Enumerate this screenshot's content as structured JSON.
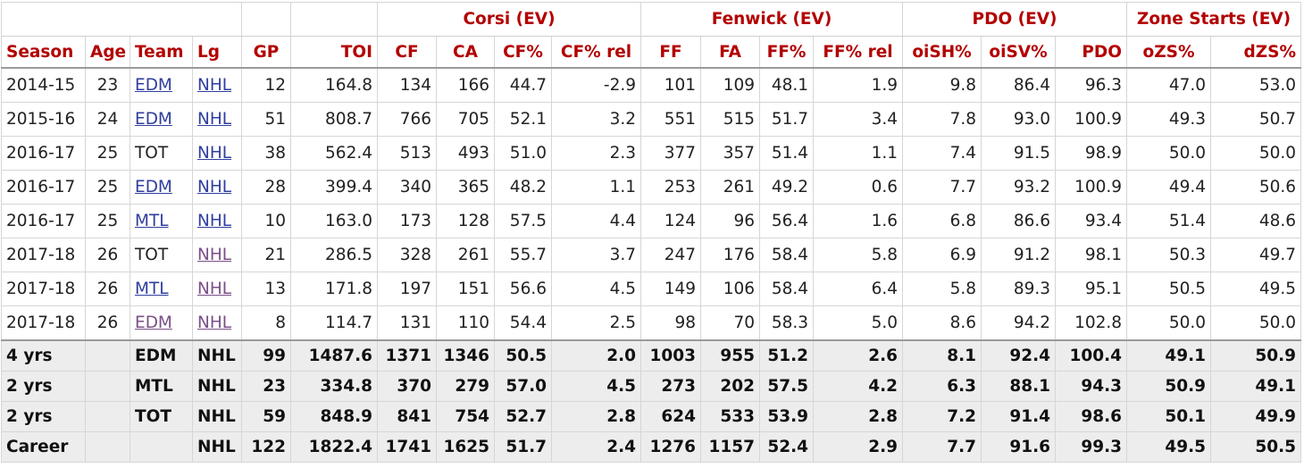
{
  "groups": {
    "corsi": "Corsi (EV)",
    "fenwick": "Fenwick (EV)",
    "pdo": "PDO (EV)",
    "zone": "Zone Starts (EV)"
  },
  "columns": [
    "Season",
    "Age",
    "Team",
    "Lg",
    "GP",
    "TOI",
    "CF",
    "CA",
    "CF%",
    "CF% rel",
    "FF",
    "FA",
    "FF%",
    "FF% rel",
    "oiSH%",
    "oiSV%",
    "PDO",
    "oZS%",
    "dZS%"
  ],
  "rows": [
    {
      "season": "2014-15",
      "age": "23",
      "team": "EDM",
      "lg": "NHL",
      "gp": "12",
      "toi": "164.8",
      "cf": "134",
      "ca": "166",
      "cfp": "44.7",
      "cfrel": "-2.9",
      "ff": "101",
      "fa": "109",
      "ffp": "48.1",
      "ffrel": "1.9",
      "oish": "9.8",
      "oisv": "86.4",
      "pdo": "96.3",
      "ozs": "47.0",
      "dzs": "53.0"
    },
    {
      "season": "2015-16",
      "age": "24",
      "team": "EDM",
      "lg": "NHL",
      "gp": "51",
      "toi": "808.7",
      "cf": "766",
      "ca": "705",
      "cfp": "52.1",
      "cfrel": "3.2",
      "ff": "551",
      "fa": "515",
      "ffp": "51.7",
      "ffrel": "3.4",
      "oish": "7.8",
      "oisv": "93.0",
      "pdo": "100.9",
      "ozs": "49.3",
      "dzs": "50.7"
    },
    {
      "season": "2016-17",
      "age": "25",
      "team": "TOT",
      "lg": "NHL",
      "gp": "38",
      "toi": "562.4",
      "cf": "513",
      "ca": "493",
      "cfp": "51.0",
      "cfrel": "2.3",
      "ff": "377",
      "fa": "357",
      "ffp": "51.4",
      "ffrel": "1.1",
      "oish": "7.4",
      "oisv": "91.5",
      "pdo": "98.9",
      "ozs": "50.0",
      "dzs": "50.0"
    },
    {
      "season": "2016-17",
      "age": "25",
      "team": "EDM",
      "lg": "NHL",
      "gp": "28",
      "toi": "399.4",
      "cf": "340",
      "ca": "365",
      "cfp": "48.2",
      "cfrel": "1.1",
      "ff": "253",
      "fa": "261",
      "ffp": "49.2",
      "ffrel": "0.6",
      "oish": "7.7",
      "oisv": "93.2",
      "pdo": "100.9",
      "ozs": "49.4",
      "dzs": "50.6"
    },
    {
      "season": "2016-17",
      "age": "25",
      "team": "MTL",
      "lg": "NHL",
      "gp": "10",
      "toi": "163.0",
      "cf": "173",
      "ca": "128",
      "cfp": "57.5",
      "cfrel": "4.4",
      "ff": "124",
      "fa": "96",
      "ffp": "56.4",
      "ffrel": "1.6",
      "oish": "6.8",
      "oisv": "86.6",
      "pdo": "93.4",
      "ozs": "51.4",
      "dzs": "48.6"
    },
    {
      "season": "2017-18",
      "age": "26",
      "team": "TOT",
      "lg": "NHL",
      "gp": "21",
      "toi": "286.5",
      "cf": "328",
      "ca": "261",
      "cfp": "55.7",
      "cfrel": "3.7",
      "ff": "247",
      "fa": "176",
      "ffp": "58.4",
      "ffrel": "5.8",
      "oish": "6.9",
      "oisv": "91.2",
      "pdo": "98.1",
      "ozs": "50.3",
      "dzs": "49.7"
    },
    {
      "season": "2017-18",
      "age": "26",
      "team": "MTL",
      "lg": "NHL",
      "gp": "13",
      "toi": "171.8",
      "cf": "197",
      "ca": "151",
      "cfp": "56.6",
      "cfrel": "4.5",
      "ff": "149",
      "fa": "106",
      "ffp": "58.4",
      "ffrel": "6.4",
      "oish": "5.8",
      "oisv": "89.3",
      "pdo": "95.1",
      "ozs": "50.5",
      "dzs": "49.5"
    },
    {
      "season": "2017-18",
      "age": "26",
      "team": "EDM",
      "lg": "NHL",
      "gp": "8",
      "toi": "114.7",
      "cf": "131",
      "ca": "110",
      "cfp": "54.4",
      "cfrel": "2.5",
      "ff": "98",
      "fa": "70",
      "ffp": "58.3",
      "ffrel": "5.0",
      "oish": "8.6",
      "oisv": "94.2",
      "pdo": "102.8",
      "ozs": "50.0",
      "dzs": "50.0"
    }
  ],
  "totals": [
    {
      "season": "4 yrs",
      "age": "",
      "team": "EDM",
      "lg": "NHL",
      "gp": "99",
      "toi": "1487.6",
      "cf": "1371",
      "ca": "1346",
      "cfp": "50.5",
      "cfrel": "2.0",
      "ff": "1003",
      "fa": "955",
      "ffp": "51.2",
      "ffrel": "2.6",
      "oish": "8.1",
      "oisv": "92.4",
      "pdo": "100.4",
      "ozs": "49.1",
      "dzs": "50.9"
    },
    {
      "season": "2 yrs",
      "age": "",
      "team": "MTL",
      "lg": "NHL",
      "gp": "23",
      "toi": "334.8",
      "cf": "370",
      "ca": "279",
      "cfp": "57.0",
      "cfrel": "4.5",
      "ff": "273",
      "fa": "202",
      "ffp": "57.5",
      "ffrel": "4.2",
      "oish": "6.3",
      "oisv": "88.1",
      "pdo": "94.3",
      "ozs": "50.9",
      "dzs": "49.1"
    },
    {
      "season": "2 yrs",
      "age": "",
      "team": "TOT",
      "lg": "NHL",
      "gp": "59",
      "toi": "848.9",
      "cf": "841",
      "ca": "754",
      "cfp": "52.7",
      "cfrel": "2.8",
      "ff": "624",
      "fa": "533",
      "ffp": "53.9",
      "ffrel": "2.8",
      "oish": "7.2",
      "oisv": "91.4",
      "pdo": "98.6",
      "ozs": "50.1",
      "dzs": "49.9"
    },
    {
      "season": "Career",
      "age": "",
      "team": "",
      "lg": "NHL",
      "gp": "122",
      "toi": "1822.4",
      "cf": "1741",
      "ca": "1625",
      "cfp": "51.7",
      "cfrel": "2.4",
      "ff": "1276",
      "fa": "1157",
      "ffp": "52.4",
      "ffrel": "2.9",
      "oish": "7.7",
      "oisv": "91.6",
      "pdo": "99.3",
      "ozs": "49.5",
      "dzs": "50.5"
    }
  ],
  "colors": {
    "header_text": "#b30000",
    "link": "#2f3e9e",
    "link_visited": "#7a4f88",
    "footer_bg": "#ededed",
    "border": "#d6d6d6"
  }
}
